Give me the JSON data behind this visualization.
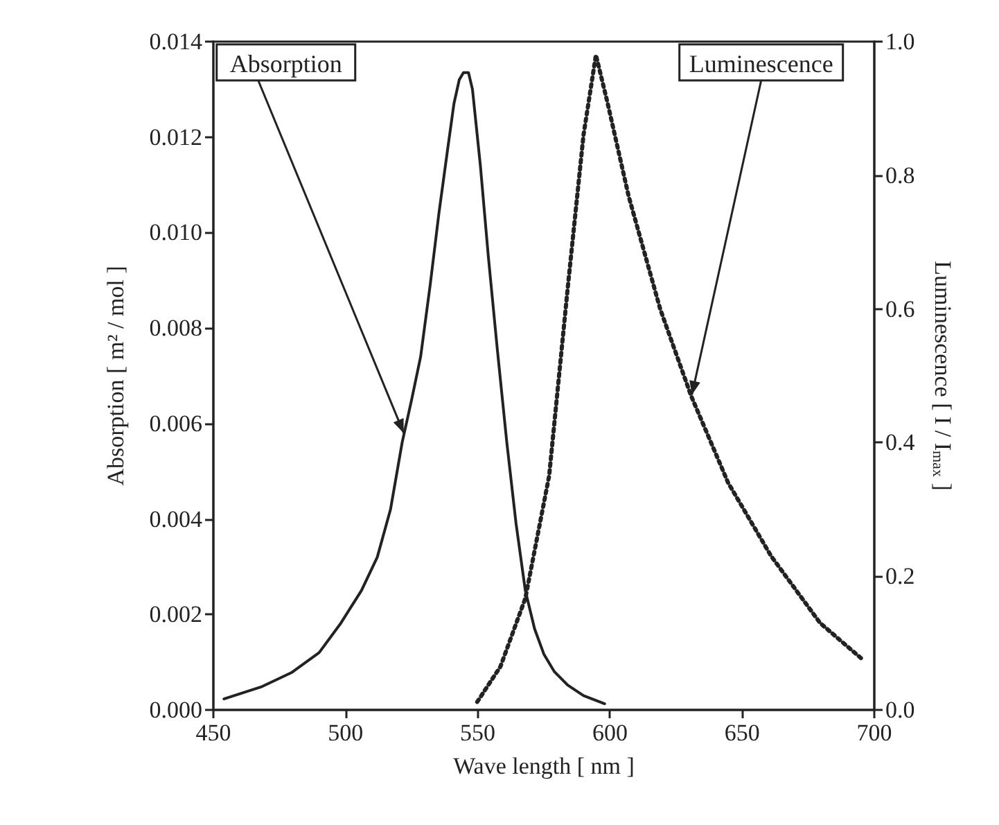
{
  "chart_data": {
    "type": "line",
    "xlabel": "Wave length [ nm ]",
    "ylabel": "Absorption [ m² / mol ]",
    "y2label": "Luminescence [ I / I$_{max}$ ]",
    "xlim": [
      450,
      700
    ],
    "xticks": [
      450,
      500,
      550,
      600,
      650,
      700
    ],
    "ylim": [
      0,
      0.014
    ],
    "yticks": [
      {
        "value": 0,
        "label": "0.000"
      },
      0.002,
      0.004,
      0.006,
      0.008,
      {
        "value": 0.01,
        "label": "0.010"
      },
      0.012,
      0.014
    ],
    "y2lim": [
      0,
      1
    ],
    "y2ticks": [
      {
        "value": 0,
        "label": "0.0"
      },
      0.2,
      0.4,
      0.6,
      0.8,
      {
        "value": 1,
        "label": "1.0"
      }
    ],
    "grid": false,
    "marker": "none",
    "annotations": [
      {
        "text": "Absorption",
        "x": 522,
        "y": 0.0058
      },
      {
        "text": "Luminescence",
        "x": 631,
        "y": 0.0066
      }
    ],
    "series": [
      {
        "color": "#222222",
        "line_style": "solid",
        "x": [
          454,
          468,
          479.5,
          490,
          498,
          506,
          512,
          517,
          521.4,
          525,
          528.4,
          532,
          535.3,
          538.5,
          541,
          543,
          544.6,
          546.5,
          548,
          551,
          554,
          557.5,
          561,
          564.5,
          568,
          571.5,
          575,
          579,
          584,
          590,
          598
        ],
        "values": [
          0.00023,
          0.00048,
          0.00078,
          0.0012,
          0.0018,
          0.0025,
          0.0032,
          0.0042,
          0.0056,
          0.0065,
          0.0074,
          0.0089,
          0.0104,
          0.0117,
          0.0127,
          0.0132,
          0.01335,
          0.01335,
          0.013,
          0.0114,
          0.0095,
          0.0075,
          0.0056,
          0.0039,
          0.0025,
          0.0017,
          0.00117,
          0.0008,
          0.00052,
          0.0003,
          0.00013
        ]
      },
      {
        "color": "#222222",
        "line_style": "dotted",
        "axis": "y2",
        "x": [
          549.8,
          558.6,
          568,
          577,
          584,
          590,
          594.7,
          599,
          607,
          619,
          630.7,
          644.7,
          661,
          679.5,
          696
        ],
        "values": [
          0.012,
          0.065,
          0.167,
          0.35,
          0.63,
          0.86,
          0.98,
          0.91,
          0.77,
          0.6,
          0.47,
          0.34,
          0.23,
          0.13,
          0.074
        ]
      }
    ]
  }
}
